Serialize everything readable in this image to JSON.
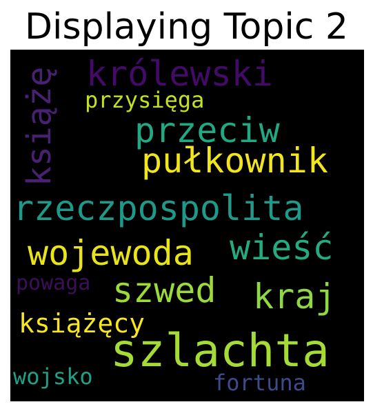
{
  "title": "Displaying Topic 2",
  "words": [
    {
      "text": "królewski",
      "color": "#440a68"
    },
    {
      "text": "książę",
      "color": "#482172"
    },
    {
      "text": "przysięga",
      "color": "#c4e021"
    },
    {
      "text": "przeciw",
      "color": "#22a884"
    },
    {
      "text": "pułkownik",
      "color": "#f1e51d"
    },
    {
      "text": "rzeczpospolita",
      "color": "#1f9a8a"
    },
    {
      "text": "wojewoda",
      "color": "#e8e419"
    },
    {
      "text": "wieść",
      "color": "#25ab82"
    },
    {
      "text": "powaga",
      "color": "#3c0f57"
    },
    {
      "text": "szwed",
      "color": "#9bd93c"
    },
    {
      "text": "kraj",
      "color": "#8fd744"
    },
    {
      "text": "książęcy",
      "color": "#f8e621"
    },
    {
      "text": "szlachta",
      "color": "#a5db36"
    },
    {
      "text": "wojsko",
      "color": "#1fa187"
    },
    {
      "text": "fortuna",
      "color": "#3e4a89"
    }
  ]
}
